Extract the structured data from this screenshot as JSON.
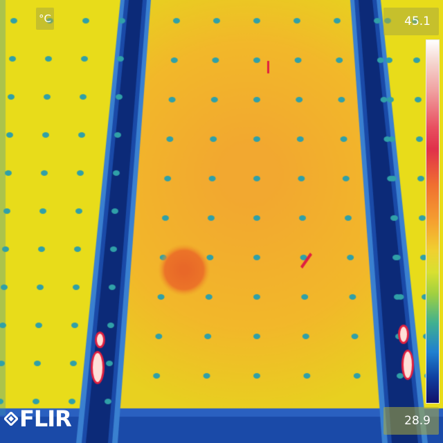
{
  "overlay": {
    "unit": "°C",
    "max_temp": "45.1",
    "min_temp": "28.9",
    "brand": "FLIR"
  },
  "palette": {
    "background": "#e8dc1a",
    "warm_panel": "#f0b428",
    "frame": "#1a4aa8",
    "dot": "#30a0a8",
    "hotspot": "#e86828",
    "hot_core": "#ffe0d8"
  },
  "icons": [
    "flir-logo-icon",
    "temperature-scale-bar"
  ]
}
